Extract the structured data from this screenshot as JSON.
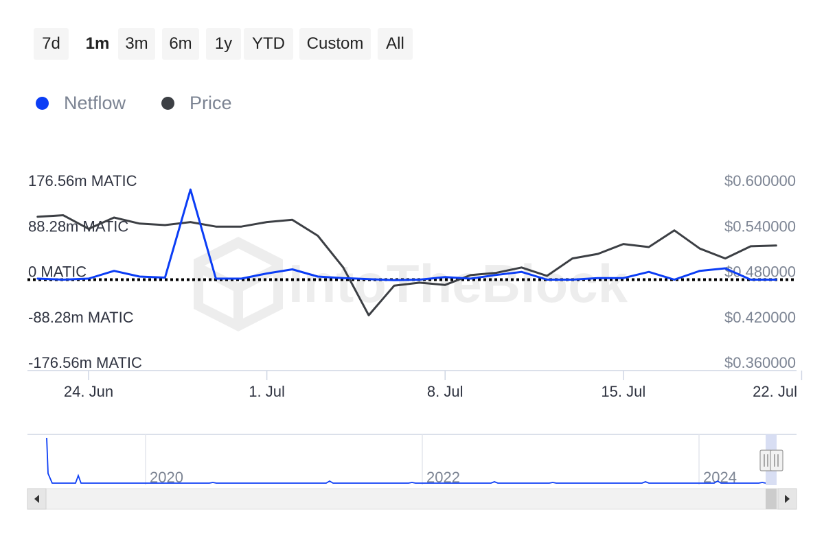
{
  "range_buttons": [
    {
      "label": "7d",
      "active": false
    },
    {
      "label": "1m",
      "active": true
    },
    {
      "label": "3m",
      "active": false
    },
    {
      "label": "6m",
      "active": false
    },
    {
      "label": "1y",
      "active": false
    },
    {
      "label": "YTD",
      "active": false
    },
    {
      "label": "Custom",
      "active": false
    },
    {
      "label": "All",
      "active": false
    }
  ],
  "legend": [
    {
      "name": "Netflow",
      "color": "#0b3df5"
    },
    {
      "name": "Price",
      "color": "#3c3f44"
    }
  ],
  "watermark": "IntoTheBlock",
  "chart_data": {
    "type": "line",
    "x_ticks": [
      "24. Jun",
      "1. Jul",
      "8. Jul",
      "15. Jul",
      "22. Jul"
    ],
    "y_left": {
      "ticks": [
        176.56,
        88.28,
        0,
        -88.28,
        -176.56
      ],
      "tick_labels": [
        "176.56m MATIC",
        "88.28m MATIC",
        "0 MATIC",
        "-88.28m MATIC",
        "-176.56m MATIC"
      ],
      "range": [
        -176.56,
        176.56
      ]
    },
    "y_right": {
      "ticks": [
        0.6,
        0.54,
        0.48,
        0.42,
        0.36
      ],
      "tick_labels": [
        "$0.600000",
        "$0.540000",
        "$0.480000",
        "$0.420000",
        "$0.360000"
      ],
      "range": [
        0.36,
        0.6
      ]
    },
    "x_range_days": [
      -2.4,
      27.8
    ],
    "x_tick_days": [
      0,
      7,
      14,
      21,
      28
    ],
    "series": [
      {
        "name": "Netflow",
        "axis": "left",
        "unit": "m MATIC",
        "days": [
          -2,
          -1,
          0,
          1,
          2,
          3,
          4,
          5,
          6,
          7,
          8,
          9,
          10,
          11,
          12,
          13,
          14,
          15,
          16,
          17,
          18,
          19,
          20,
          21,
          22,
          23,
          24,
          25,
          26,
          27
        ],
        "values": [
          2,
          0,
          2,
          17,
          6,
          4,
          175,
          2,
          2,
          12,
          20,
          6,
          3,
          1,
          -1,
          0,
          5,
          2,
          9,
          15,
          0,
          0,
          3,
          3,
          15,
          0,
          17,
          22,
          0,
          0
        ]
      },
      {
        "name": "Price",
        "axis": "right",
        "unit": "$",
        "days": [
          -2,
          -1,
          0,
          1,
          2,
          3,
          4,
          5,
          6,
          7,
          8,
          9,
          10,
          11,
          12,
          13,
          14,
          15,
          16,
          17,
          18,
          19,
          20,
          21,
          22,
          23,
          24,
          25,
          26,
          27
        ],
        "values": [
          0.563,
          0.565,
          0.547,
          0.562,
          0.554,
          0.552,
          0.556,
          0.55,
          0.55,
          0.556,
          0.559,
          0.538,
          0.496,
          0.433,
          0.472,
          0.476,
          0.473,
          0.486,
          0.489,
          0.496,
          0.485,
          0.508,
          0.514,
          0.527,
          0.523,
          0.545,
          0.521,
          0.508,
          0.524,
          0.525
        ]
      }
    ],
    "navigator": {
      "year_labels": [
        "2020",
        "2022",
        "2024"
      ]
    }
  }
}
